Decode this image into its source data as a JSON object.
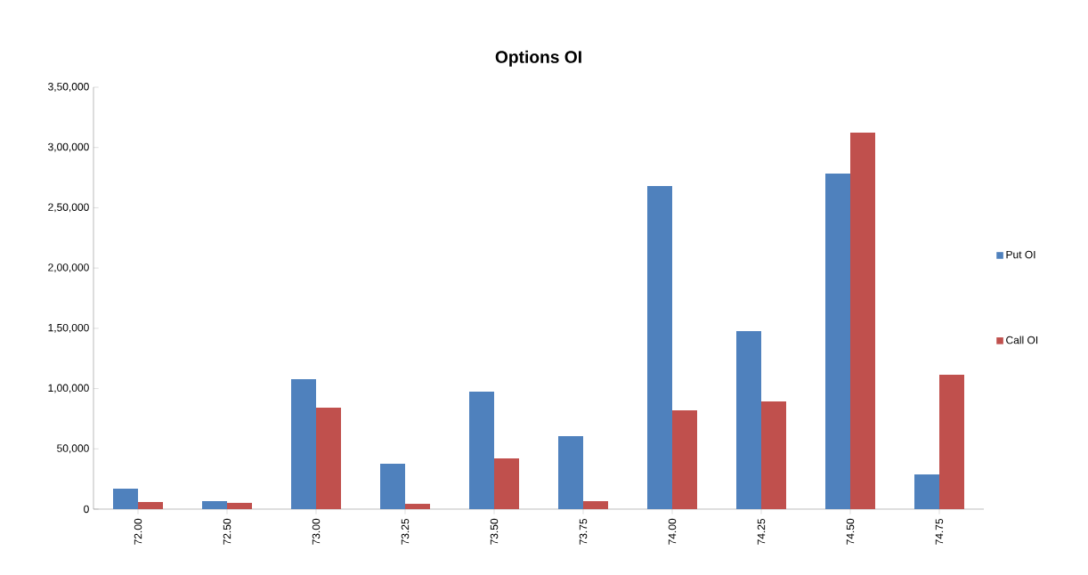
{
  "chart_data": {
    "type": "bar",
    "title": "Options OI",
    "categories": [
      "72.00",
      "72.50",
      "73.00",
      "73.25",
      "73.50",
      "73.75",
      "74.00",
      "74.25",
      "74.50",
      "74.75"
    ],
    "series": [
      {
        "name": "Put OI",
        "color": "#4f81bd",
        "values": [
          17000,
          6600,
          107800,
          37700,
          97500,
          60600,
          268100,
          147700,
          278400,
          28800
        ]
      },
      {
        "name": "Call OI",
        "color": "#c0504d",
        "values": [
          5900,
          5200,
          84200,
          4400,
          42100,
          6600,
          82000,
          89400,
          312400,
          111500
        ]
      }
    ],
    "ylim": [
      0,
      350000
    ],
    "yticks": [
      {
        "value": 0,
        "label": "0"
      },
      {
        "value": 50000,
        "label": "50,000"
      },
      {
        "value": 100000,
        "label": "1,00,000"
      },
      {
        "value": 150000,
        "label": "1,50,000"
      },
      {
        "value": 200000,
        "label": "2,00,000"
      },
      {
        "value": 250000,
        "label": "2,50,000"
      },
      {
        "value": 300000,
        "label": "3,00,000"
      },
      {
        "value": 350000,
        "label": "3,50,000"
      }
    ],
    "grid": false,
    "legend": "right"
  }
}
